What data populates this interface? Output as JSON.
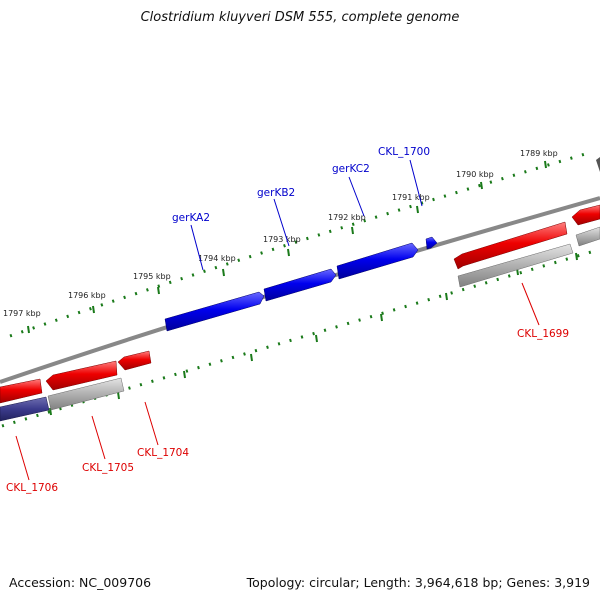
{
  "title": "Clostridium kluyveri DSM 555, complete genome",
  "footer": {
    "accession": "Accession: NC_009706",
    "summary": "Topology: circular; Length: 3,964,618 bp; Genes: 3,919"
  },
  "colors": {
    "forward_gene": "#0000ee",
    "reverse_gene": "#ee0000",
    "cds_track": "#aaaaaa",
    "cds_track_dark": "#3b3b8c",
    "backbone": "#888888",
    "tick": "#1a7a1a",
    "forward_label": "#0000cc",
    "reverse_label": "#dd0000"
  },
  "scale": {
    "unit": "kbp",
    "upper_labels": [
      "1789 kbp",
      "1790 kbp",
      "1791 kbp",
      "1792 kbp",
      "1793 kbp",
      "1794 kbp",
      "1795 kbp",
      "1796 kbp",
      "1797 kbp"
    ]
  },
  "forward_genes": [
    {
      "name": "CKL_1700",
      "label": "CKL_1700"
    },
    {
      "name": "gerKC2",
      "label": "gerKC2"
    },
    {
      "name": "gerKB2",
      "label": "gerKB2"
    },
    {
      "name": "gerKA2",
      "label": "gerKA2"
    }
  ],
  "reverse_genes": [
    {
      "name": "CKL_1699",
      "label": "CKL_1699"
    },
    {
      "name": "CKL_1704",
      "label": "CKL_1704"
    },
    {
      "name": "CKL_1705",
      "label": "CKL_1705"
    },
    {
      "name": "CKL_1706",
      "label": "CKL_1706"
    }
  ]
}
